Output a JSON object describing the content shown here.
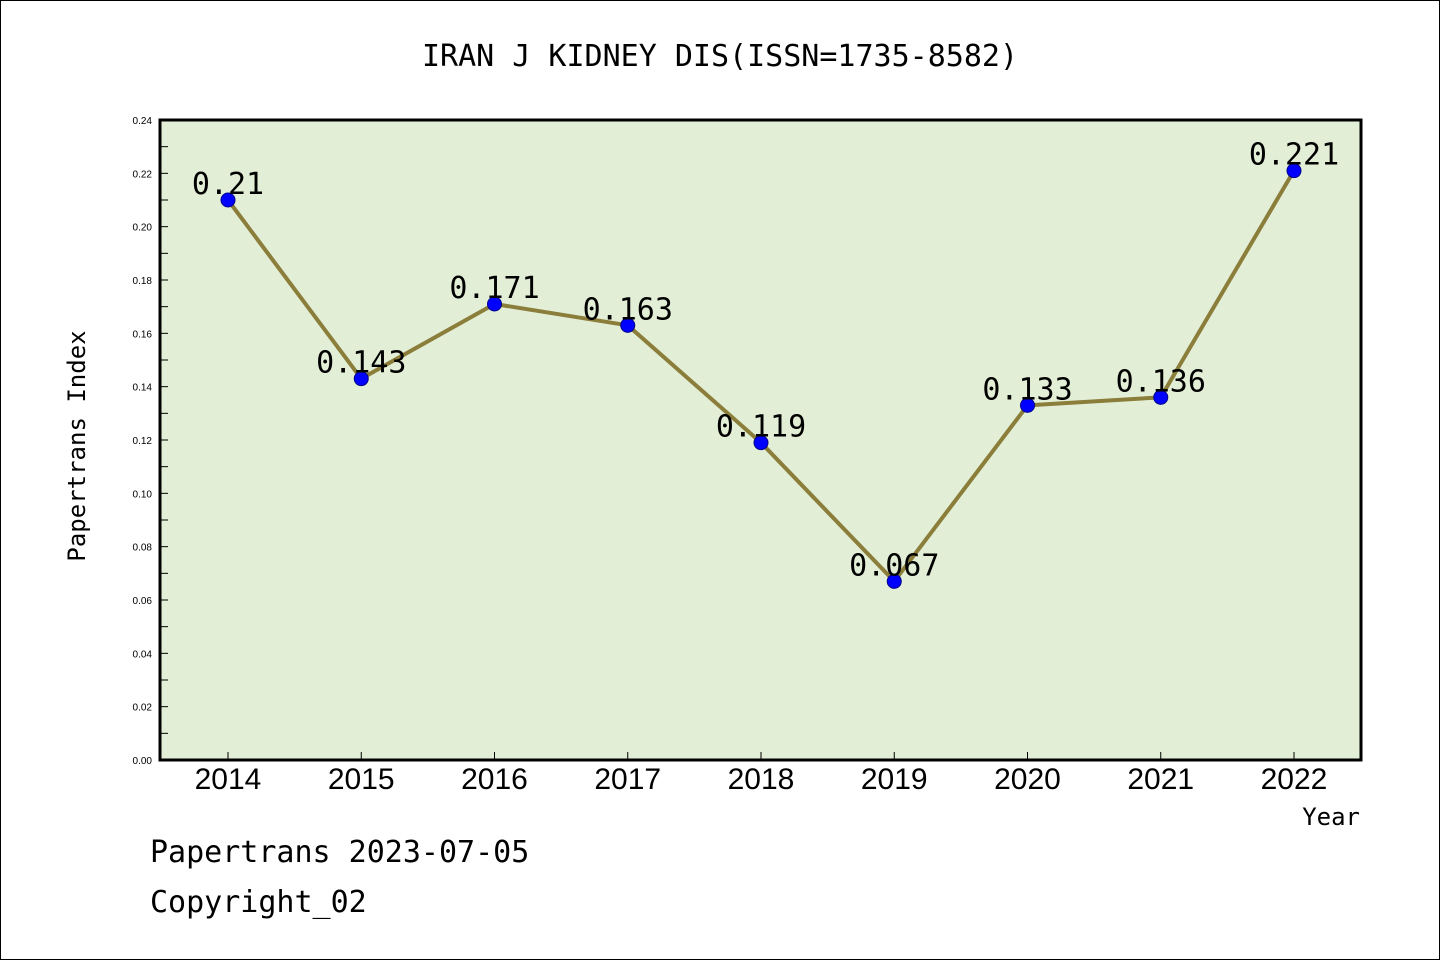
{
  "chart_data": {
    "type": "line",
    "title": "IRAN J KIDNEY DIS(ISSN=1735-8582)",
    "xlabel": "Year",
    "ylabel": "Papertrans Index",
    "categories": [
      "2014",
      "2015",
      "2016",
      "2017",
      "2018",
      "2019",
      "2020",
      "2021",
      "2022"
    ],
    "series": [
      {
        "values": [
          0.21,
          0.143,
          0.171,
          0.163,
          0.119,
          0.067,
          0.133,
          0.136,
          0.221
        ],
        "labels": [
          "0.21",
          "0.143",
          "0.171",
          "0.163",
          "0.119",
          "0.067",
          "0.133",
          "0.136",
          "0.221"
        ],
        "line_color": "#8b7d3a",
        "marker_color": "#0000ff"
      }
    ],
    "ylim": [
      0,
      0.24
    ],
    "yticks": [
      "0.00",
      "0.02",
      "0.04",
      "0.06",
      "0.08",
      "0.10",
      "0.12",
      "0.14",
      "0.16",
      "0.18",
      "0.20",
      "0.22",
      "0.24"
    ],
    "grid": false,
    "legend": "none",
    "plot_background": "#e2efd6"
  },
  "footer": {
    "line1": "Papertrans 2023-07-05",
    "line2": "Copyright_02"
  }
}
